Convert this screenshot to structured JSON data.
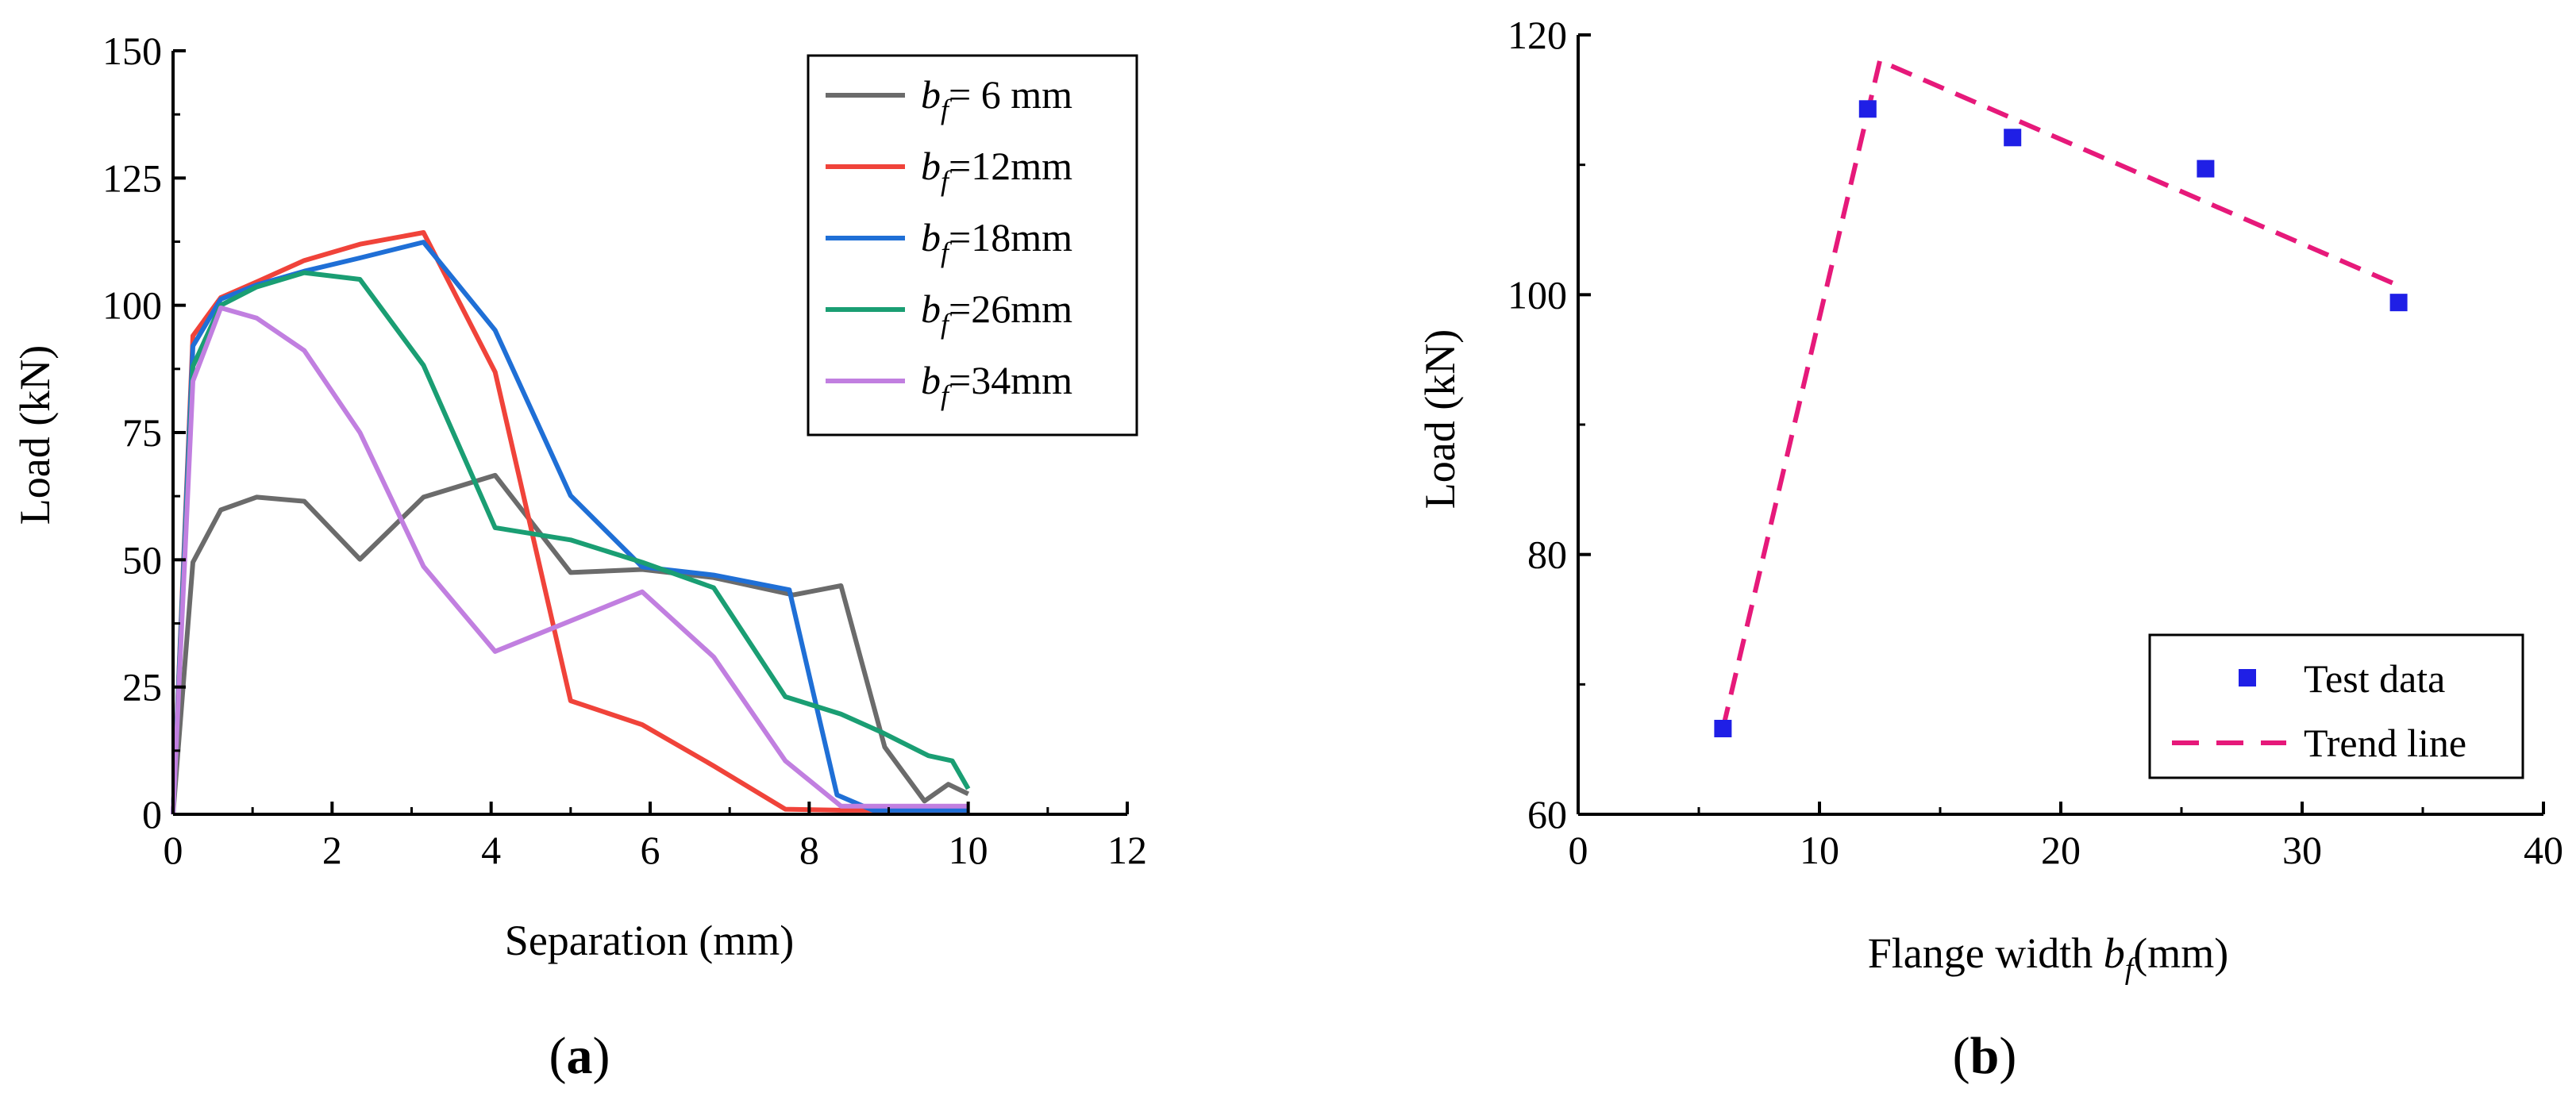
{
  "chart_data": [
    {
      "type": "line",
      "panel_label": {
        "open": "(",
        "letter": "a",
        "close": ")"
      },
      "xlabel": "Separation (mm)",
      "ylabel": "Load (kN)",
      "xlim": [
        0,
        12
      ],
      "ylim": [
        0,
        150
      ],
      "xticks": [
        0,
        2,
        4,
        6,
        8,
        10,
        12
      ],
      "yticks": [
        0,
        25,
        50,
        75,
        100,
        125,
        150
      ],
      "xtick_labels": [
        "0",
        "2",
        "4",
        "6",
        "8",
        "10",
        "12"
      ],
      "ytick_labels": [
        "0",
        "25",
        "50",
        "75",
        "100",
        "125",
        "150"
      ],
      "legend_position": "top-right",
      "series": [
        {
          "name": "bf= 6 mm",
          "legend": {
            "var": "b",
            "sub": "f",
            "rest": "= 6 mm"
          },
          "color": "#6b6b6b",
          "x": [
            0,
            0.25,
            0.6,
            1.05,
            1.65,
            2.35,
            3.15,
            4.05,
            5.0,
            5.9,
            6.8,
            7.8,
            8.4,
            8.95,
            9.45,
            9.75,
            10.0
          ],
          "y": [
            0,
            49.5,
            59.8,
            62.3,
            61.5,
            50.1,
            62.3,
            66.6,
            47.5,
            48.1,
            46.5,
            43.1,
            44.9,
            13.2,
            2.6,
            5.9,
            4.0
          ]
        },
        {
          "name": "bf=12mm",
          "legend": {
            "var": "b",
            "sub": "f",
            "rest": "=12mm"
          },
          "color": "#f0433a",
          "x": [
            0,
            0.25,
            0.6,
            1.05,
            1.65,
            2.35,
            3.15,
            4.05,
            5.0,
            5.9,
            6.8,
            7.7,
            8.4,
            9.0,
            10.0
          ],
          "y": [
            0,
            94.0,
            101.5,
            104.6,
            108.8,
            112.0,
            114.3,
            86.9,
            22.3,
            17.6,
            9.5,
            1.0,
            0.8,
            0.8,
            0.8
          ]
        },
        {
          "name": "bf=18mm",
          "legend": {
            "var": "b",
            "sub": "f",
            "rest": "=18mm"
          },
          "color": "#1f6fd6",
          "x": [
            0,
            0.25,
            0.6,
            1.05,
            1.65,
            2.35,
            3.15,
            4.05,
            5.0,
            5.9,
            6.8,
            7.75,
            8.35,
            8.8,
            10.0
          ],
          "y": [
            0,
            92.0,
            101.2,
            104.0,
            106.7,
            109.3,
            112.4,
            95.1,
            62.6,
            48.6,
            47.0,
            44.1,
            3.8,
            0.8,
            0.8
          ]
        },
        {
          "name": "bf=26mm",
          "legend": {
            "var": "b",
            "sub": "f",
            "rest": "=26mm"
          },
          "color": "#1a9e73",
          "x": [
            0,
            0.25,
            0.6,
            1.05,
            1.65,
            2.35,
            3.15,
            4.05,
            5.0,
            5.9,
            6.8,
            7.7,
            8.4,
            8.9,
            9.5,
            9.8,
            10.0
          ],
          "y": [
            0,
            88.0,
            100.0,
            103.6,
            106.4,
            105.1,
            88.2,
            56.3,
            53.9,
            49.5,
            44.5,
            23.1,
            19.7,
            16.2,
            11.5,
            10.5,
            5.0
          ]
        },
        {
          "name": "bf=34mm",
          "legend": {
            "var": "b",
            "sub": "f",
            "rest": "=34mm"
          },
          "color": "#c17fe0",
          "x": [
            0,
            0.25,
            0.6,
            1.05,
            1.65,
            2.35,
            3.15,
            4.05,
            5.0,
            5.9,
            6.8,
            7.7,
            8.4,
            9.0,
            10.0
          ],
          "y": [
            0,
            85.1,
            99.5,
            97.5,
            91.1,
            75.0,
            48.7,
            32.0,
            38.0,
            43.7,
            30.9,
            10.5,
            1.6,
            1.6,
            1.6
          ]
        }
      ]
    },
    {
      "type": "scatter",
      "panel_label": {
        "open": "(",
        "letter": "b",
        "close": ")"
      },
      "xlabel": "Flange width",
      "xlabel_var": {
        "var": "b",
        "sub": "f",
        "rest": "(mm)"
      },
      "ylabel": "Load (kN)",
      "xlim": [
        0,
        40
      ],
      "ylim": [
        60,
        120
      ],
      "xticks": [
        0,
        10,
        20,
        30,
        40
      ],
      "yticks": [
        60,
        80,
        100,
        120
      ],
      "xtick_labels": [
        "0",
        "10",
        "20",
        "30",
        "40"
      ],
      "ytick_labels": [
        "60",
        "80",
        "100",
        "120"
      ],
      "legend_position": "bottom-right",
      "series": [
        {
          "name": "Test data",
          "kind": "scatter",
          "color": "#1f1fe6",
          "x": [
            6,
            12,
            18,
            26,
            34
          ],
          "y": [
            66.6,
            114.3,
            112.1,
            109.7,
            99.4
          ]
        },
        {
          "name": "Trend line",
          "kind": "line",
          "dashed": true,
          "color": "#e6197a",
          "x": [
            6,
            12.5,
            34
          ],
          "y": [
            66.6,
            118.0,
            100.7
          ]
        }
      ]
    }
  ]
}
